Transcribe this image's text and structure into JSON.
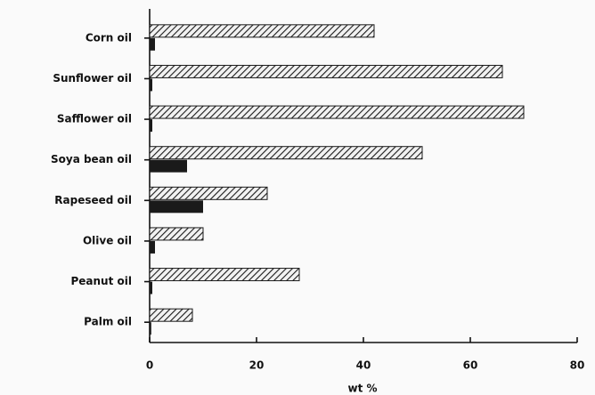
{
  "chart_data": {
    "type": "hbar",
    "categories": [
      "Corn oil",
      "Sunflower oil",
      "Safflower oil",
      "Soya bean oil",
      "Rapeseed oil",
      "Olive oil",
      "Peanut oil",
      "Palm oil"
    ],
    "series": [
      {
        "color": "#1a1a1a",
        "pattern": "hatch",
        "values": [
          42,
          66,
          70,
          51,
          22,
          10,
          28,
          8
        ]
      },
      {
        "color": "#1a1a1a",
        "pattern": "solid",
        "values": [
          1,
          0.5,
          0.5,
          7,
          10,
          1,
          0.5,
          0.3
        ]
      }
    ],
    "xlabel": "wt %",
    "xlim": [
      0,
      80
    ],
    "xticks": [
      0,
      20,
      40,
      60,
      80
    ]
  }
}
